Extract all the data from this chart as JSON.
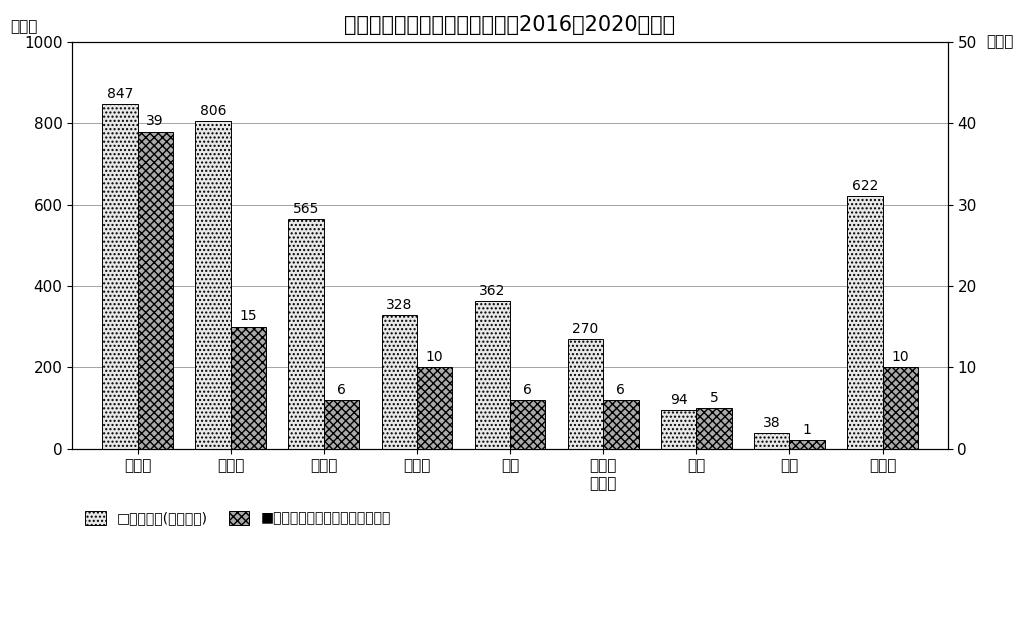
{
  "title": "熱中症による業種別死傷者数（2016〜2020年計）",
  "categories": [
    "建設業",
    "製造業",
    "運送業",
    "警備業",
    "商業",
    "清掃・\nと畜業",
    "農業",
    "林業",
    "その他"
  ],
  "injured": [
    847,
    806,
    565,
    328,
    362,
    270,
    94,
    38,
    622
  ],
  "deaths": [
    39,
    15,
    6,
    10,
    6,
    6,
    5,
    1,
    10
  ],
  "left_ylabel": "（人）",
  "right_ylabel": "（人）",
  "left_ylim": [
    0,
    1000
  ],
  "right_ylim": [
    0,
    50
  ],
  "left_yticks": [
    0,
    200,
    400,
    600,
    800,
    1000
  ],
  "right_yticks": [
    0,
    10,
    20,
    30,
    40,
    50
  ],
  "legend_injured": "□死傷者数(左目盛り)",
  "legend_deaths": "■死亡者数（内数）（右目盛り）",
  "bar_width": 0.38,
  "injured_color": "#e8e8e8",
  "injured_hatch": "....",
  "deaths_color": "#aaaaaa",
  "deaths_hatch": "xxxx",
  "title_fontsize": 15,
  "label_fontsize": 11,
  "tick_fontsize": 11,
  "annot_fontsize": 10
}
